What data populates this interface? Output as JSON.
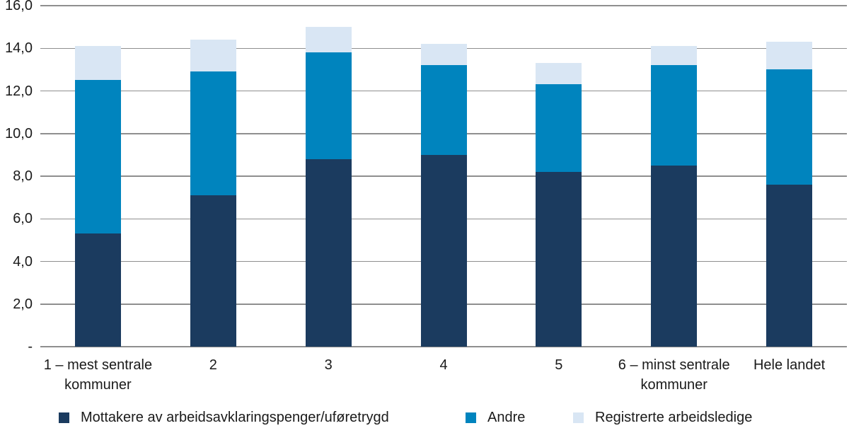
{
  "chart_data": {
    "type": "bar",
    "stacked": true,
    "title": "",
    "xlabel": "",
    "ylabel": "",
    "categories": [
      "1 – mest sentrale kommuner",
      "2",
      "3",
      "4",
      "5",
      "6 – minst sentrale kommuner",
      "Hele landet"
    ],
    "series": [
      {
        "name": "Mottakere av arbeidsavklaringspenger/uføretrygd",
        "color": "#1b3b5f",
        "values": [
          5.3,
          7.1,
          8.8,
          9.0,
          8.2,
          8.5,
          7.6
        ]
      },
      {
        "name": "Andre",
        "color": "#0084be",
        "values": [
          7.2,
          5.8,
          5.0,
          4.2,
          4.1,
          4.7,
          5.4
        ]
      },
      {
        "name": "Registrerte arbeidsledige",
        "color": "#d9e6f4",
        "values": [
          1.6,
          1.5,
          1.2,
          1.0,
          1.0,
          0.9,
          1.3
        ]
      }
    ],
    "ylim": [
      0,
      16
    ],
    "ytick_step": 2,
    "ytick_labels": [
      "-",
      "2,0",
      "4,0",
      "6,0",
      "8,0",
      "10,0",
      "12,0",
      "14,0",
      "16,0"
    ],
    "decimal_separator": ",",
    "grid": true,
    "legend_position": "bottom"
  },
  "colors": {
    "background": "#ffffff",
    "gridline": "#8f8f8f",
    "text": "#1a1a1a"
  }
}
